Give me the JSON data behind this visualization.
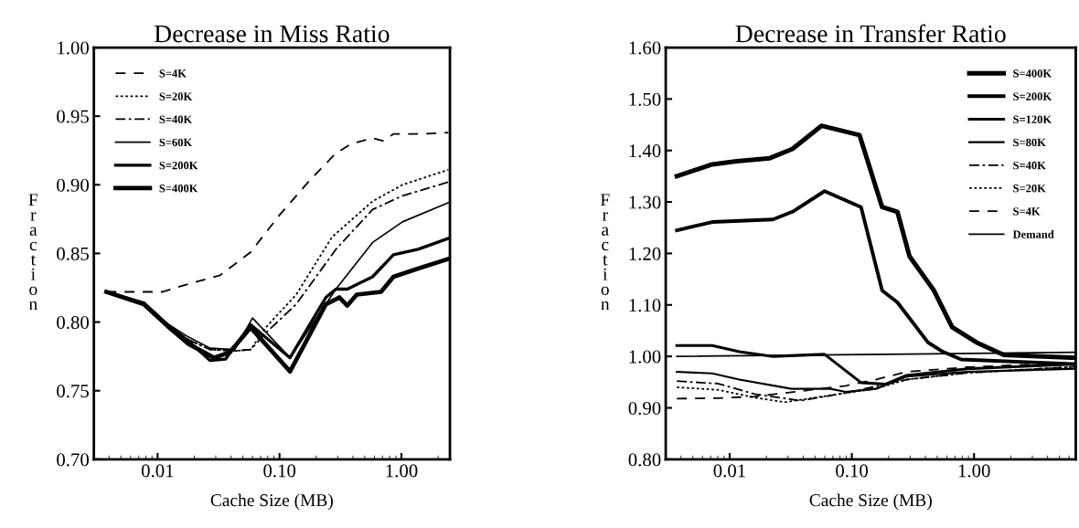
{
  "chart_data": [
    {
      "type": "line",
      "title": "Decrease in Miss Ratio",
      "xlabel": "Cache Size (MB)",
      "ylabel": "Fraction",
      "log": "x",
      "grid": false,
      "legend": "top left",
      "xlim": [
        0.003,
        2.5
      ],
      "xticks": [
        {
          "value": 0.01,
          "label": "0.01"
        },
        {
          "value": 0.1,
          "label": "0.10"
        },
        {
          "value": 1,
          "label": "1.00"
        }
      ],
      "ylim": [
        0.7,
        1.0
      ],
      "yticks": [
        {
          "value": 0.7,
          "label": "0.70"
        },
        {
          "value": 0.75,
          "label": "0.75"
        },
        {
          "value": 0.8,
          "label": "0.80"
        },
        {
          "value": 0.85,
          "label": "0.85"
        },
        {
          "value": 0.9,
          "label": "0.90"
        },
        {
          "value": 0.95,
          "label": "0.95"
        },
        {
          "value": 1.0,
          "label": "1.00"
        }
      ],
      "series": [
        {
          "name": "S=4K",
          "color": "#000000",
          "line_style": "dashed",
          "x": [
            0.0038,
            0.0109,
            0.0183,
            0.0325,
            0.058,
            0.1,
            0.18,
            0.29,
            0.39,
            0.58,
            0.7,
            0.86,
            1.37,
            2.43
          ],
          "values": [
            0.822,
            0.822,
            0.828,
            0.834,
            0.851,
            0.878,
            0.904,
            0.923,
            0.93,
            0.934,
            0.932,
            0.937,
            0.937,
            0.938
          ]
        },
        {
          "name": "S=20K",
          "color": "#000000",
          "line_style": "dotted",
          "x": [
            0.0038,
            0.0077,
            0.0115,
            0.018,
            0.027,
            0.043,
            0.058,
            0.077,
            0.137,
            0.27,
            0.58,
            1.02,
            2.43
          ],
          "values": [
            0.822,
            0.813,
            0.799,
            0.787,
            0.78,
            0.779,
            0.78,
            0.796,
            0.82,
            0.862,
            0.888,
            0.9,
            0.911
          ]
        },
        {
          "name": "S=40K",
          "color": "#000000",
          "line_style": "dashdot",
          "x": [
            0.0038,
            0.0077,
            0.0115,
            0.018,
            0.027,
            0.043,
            0.058,
            0.077,
            0.137,
            0.29,
            0.58,
            1.02,
            2.43
          ],
          "values": [
            0.822,
            0.813,
            0.799,
            0.787,
            0.78,
            0.779,
            0.78,
            0.792,
            0.813,
            0.853,
            0.882,
            0.892,
            0.902
          ]
        },
        {
          "name": "S=60K",
          "color": "#000000",
          "line_style": "solid",
          "x": [
            0.0038,
            0.0077,
            0.0115,
            0.018,
            0.027,
            0.043,
            0.06,
            0.122,
            0.29,
            0.58,
            1.02,
            2.43
          ],
          "values": [
            0.822,
            0.813,
            0.8,
            0.789,
            0.781,
            0.78,
            0.803,
            0.774,
            0.824,
            0.858,
            0.873,
            0.887
          ]
        },
        {
          "name": "S=200K",
          "color": "#000000",
          "line_style": "solid",
          "x": [
            0.0038,
            0.0077,
            0.0121,
            0.018,
            0.027,
            0.036,
            0.058,
            0.122,
            0.24,
            0.29,
            0.36,
            0.58,
            0.86,
            1.37,
            2.43
          ],
          "values": [
            0.822,
            0.814,
            0.798,
            0.786,
            0.772,
            0.773,
            0.798,
            0.774,
            0.818,
            0.824,
            0.824,
            0.833,
            0.849,
            0.853,
            0.861
          ]
        },
        {
          "name": "S=400K",
          "color": "#000000",
          "line_style": "solid",
          "x": [
            0.0038,
            0.0077,
            0.0121,
            0.018,
            0.029,
            0.039,
            0.058,
            0.122,
            0.24,
            0.31,
            0.36,
            0.43,
            0.68,
            0.86,
            1.37,
            2.43
          ],
          "values": [
            0.822,
            0.813,
            0.797,
            0.784,
            0.774,
            0.778,
            0.796,
            0.764,
            0.813,
            0.818,
            0.812,
            0.82,
            0.822,
            0.833,
            0.839,
            0.846
          ]
        }
      ]
    },
    {
      "type": "line",
      "title": "Decrease in Transfer Ratio",
      "xlabel": "Cache Size (MB)",
      "ylabel": "Fraction",
      "log": "x",
      "grid": false,
      "legend": "top right",
      "xlim": [
        0.003,
        6.8
      ],
      "xticks": [
        {
          "value": 0.01,
          "label": "0.01"
        },
        {
          "value": 0.1,
          "label": "0.10"
        },
        {
          "value": 1,
          "label": "1.00"
        }
      ],
      "ylim": [
        0.8,
        1.6
      ],
      "yticks": [
        {
          "value": 0.8,
          "label": "0.80"
        },
        {
          "value": 0.9,
          "label": "0.90"
        },
        {
          "value": 1.0,
          "label": "1.00"
        },
        {
          "value": 1.1,
          "label": "1.10"
        },
        {
          "value": 1.2,
          "label": "1.20"
        },
        {
          "value": 1.3,
          "label": "1.30"
        },
        {
          "value": 1.4,
          "label": "1.40"
        },
        {
          "value": 1.5,
          "label": "1.50"
        },
        {
          "value": 1.6,
          "label": "1.60"
        }
      ],
      "series": [
        {
          "name": "S=400K",
          "color": "#000000",
          "line_style": "solid",
          "x": [
            0.0037,
            0.0072,
            0.0114,
            0.0213,
            0.0327,
            0.0564,
            0.1155,
            0.177,
            0.236,
            0.297,
            0.47,
            0.662,
            1.05,
            1.75,
            6.8
          ],
          "values": [
            1.35,
            1.373,
            1.379,
            1.385,
            1.403,
            1.448,
            1.43,
            1.29,
            1.281,
            1.194,
            1.128,
            1.057,
            1.027,
            1.003,
            0.997
          ]
        },
        {
          "name": "S=200K",
          "color": "#000000",
          "line_style": "solid",
          "x": [
            0.0037,
            0.0072,
            0.0226,
            0.0327,
            0.0598,
            0.119,
            0.177,
            0.236,
            0.42,
            0.556,
            0.785,
            6.8
          ],
          "values": [
            1.245,
            1.261,
            1.266,
            1.281,
            1.321,
            1.29,
            1.128,
            1.105,
            1.027,
            1.009,
            0.994,
            0.985
          ]
        },
        {
          "name": "S=120K",
          "color": "#000000",
          "line_style": "solid",
          "x": [
            0.0037,
            0.0072,
            0.012,
            0.0226,
            0.0598,
            0.119,
            0.188,
            0.28,
            0.88,
            6.8
          ],
          "values": [
            1.021,
            1.021,
            1.009,
            1.0,
            1.004,
            0.949,
            0.946,
            0.963,
            0.976,
            0.985
          ]
        },
        {
          "name": "S=80K",
          "color": "#000000",
          "line_style": "solid",
          "x": [
            0.0037,
            0.0072,
            0.012,
            0.032,
            0.067,
            0.089,
            0.157,
            0.28,
            0.88,
            6.8
          ],
          "values": [
            0.97,
            0.967,
            0.955,
            0.937,
            0.937,
            0.931,
            0.937,
            0.961,
            0.97,
            0.976
          ]
        },
        {
          "name": "S=40K",
          "color": "#000000",
          "line_style": "dashdot",
          "x": [
            0.0037,
            0.0081,
            0.016,
            0.038,
            0.089,
            0.28,
            0.88,
            6.8
          ],
          "values": [
            0.952,
            0.947,
            0.927,
            0.914,
            0.929,
            0.955,
            0.968,
            0.98
          ]
        },
        {
          "name": "S=20K",
          "color": "#000000",
          "line_style": "dotted",
          "x": [
            0.0037,
            0.0081,
            0.016,
            0.0283,
            0.089,
            0.157,
            0.28,
            0.88,
            6.8
          ],
          "values": [
            0.94,
            0.935,
            0.92,
            0.911,
            0.929,
            0.937,
            0.955,
            0.968,
            0.98
          ]
        },
        {
          "name": "S=4K",
          "color": "#000000",
          "line_style": "dashed",
          "x": [
            0.0037,
            0.0081,
            0.016,
            0.089,
            0.157,
            0.28,
            0.88,
            6.8
          ],
          "values": [
            0.918,
            0.919,
            0.922,
            0.943,
            0.955,
            0.97,
            0.979,
            0.988
          ]
        },
        {
          "name": "Demand",
          "color": "#000000",
          "line_style": "solid",
          "x": [
            0.0037,
            6.8
          ],
          "values": [
            1.0,
            1.008
          ]
        }
      ]
    }
  ]
}
